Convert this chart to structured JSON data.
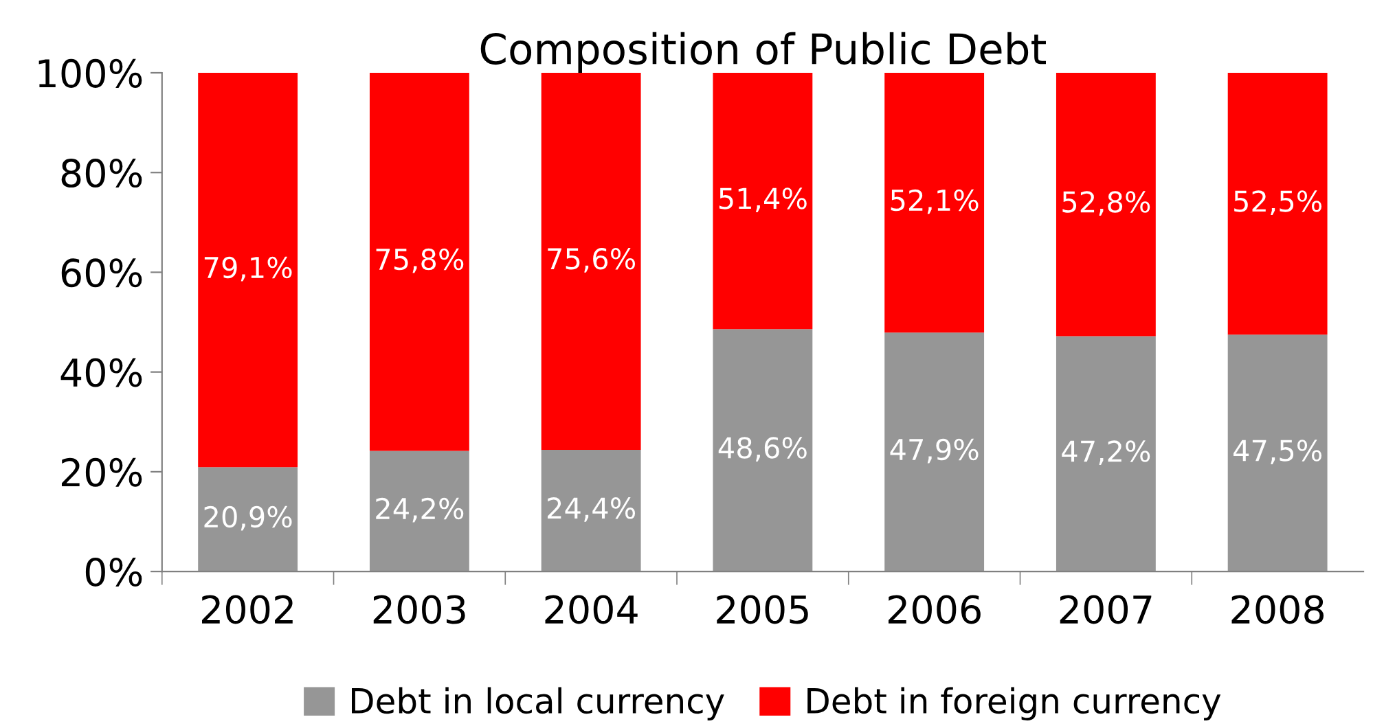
{
  "chart_data": {
    "type": "bar",
    "title": "Composition of Public Debt",
    "stacked": true,
    "categories": [
      "2002",
      "2003",
      "2004",
      "2005",
      "2006",
      "2007",
      "2008"
    ],
    "series": [
      {
        "name": "Debt in local currency",
        "color": "#969696",
        "values": [
          20.9,
          24.2,
          24.4,
          48.6,
          47.9,
          47.2,
          47.5
        ],
        "value_labels": [
          "20,9%",
          "24,2%",
          "24,4%",
          "48,6%",
          "47,9%",
          "47,2%",
          "47,5%"
        ]
      },
      {
        "name": "Debt in foreign currency",
        "color": "#ff0000",
        "values": [
          79.1,
          75.8,
          75.6,
          51.4,
          52.1,
          52.8,
          52.5
        ],
        "value_labels": [
          "79,1%",
          "75,8%",
          "75,6%",
          "51,4%",
          "52,1%",
          "52,8%",
          "52,5%"
        ]
      }
    ],
    "ylim": [
      0,
      100
    ],
    "yticks": [
      {
        "value": 0,
        "label": "0%"
      },
      {
        "value": 20,
        "label": "20%"
      },
      {
        "value": 40,
        "label": "40%"
      },
      {
        "value": 60,
        "label": "60%"
      },
      {
        "value": 80,
        "label": "80%"
      },
      {
        "value": 100,
        "label": "100%"
      }
    ],
    "grid": false,
    "legend": "bottom"
  }
}
